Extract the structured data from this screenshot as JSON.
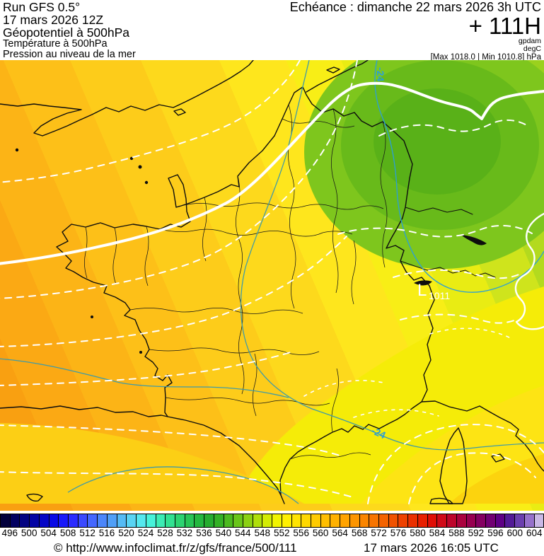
{
  "header": {
    "left_lines": [
      "Run GFS 0.5°",
      "17 mars 2026 12Z",
      "Géopotentiel à 500hPa",
      "Température à 500hPa",
      "Pression au niveau de la mer"
    ],
    "echeance": "Echéance : dimanche 22 mars 2026 3h UTC",
    "forecast_hour": "+ 111H",
    "unit_lines": [
      "gpdam",
      "degC"
    ],
    "maxmin": "[Max 1018.0 | Min 1010.8] hPa"
  },
  "map": {
    "low_label": "L",
    "low_value": "1011",
    "temp_labels": [
      {
        "text": "-24"
      },
      {
        "text": "-24"
      }
    ],
    "temp_contour_color": "#2a9fd8",
    "temp_contour_secondary_color": "#3f9ba8",
    "geopotential_contour_color": "#ffffff",
    "isobar_color": "#ffffff"
  },
  "scale": {
    "values": [
      "496",
      "500",
      "504",
      "508",
      "512",
      "516",
      "520",
      "524",
      "528",
      "532",
      "536",
      "540",
      "544",
      "548",
      "552",
      "556",
      "560",
      "564",
      "568",
      "572",
      "576",
      "580",
      "584",
      "588",
      "592",
      "596",
      "600",
      "604"
    ],
    "cell_colors": [
      "#02003c",
      "#020060",
      "#030382",
      "#0404a4",
      "#0505c6",
      "#0a0ae6",
      "#1818fa",
      "#2b2bff",
      "#3a49ff",
      "#4467ff",
      "#4b86fb",
      "#509ff7",
      "#55bbf5",
      "#59d4f3",
      "#55e8ee",
      "#47f2d9",
      "#3cecb4",
      "#32e191",
      "#2cd371",
      "#27c556",
      "#23b83f",
      "#25ad2f",
      "#33b125",
      "#4cba1f",
      "#6ac61a",
      "#8bd113",
      "#afdf0b",
      "#d3ec04",
      "#f1f400",
      "#fff000",
      "#ffe400",
      "#ffd800",
      "#ffcb00",
      "#ffbe00",
      "#ffb100",
      "#ffa300",
      "#fd9500",
      "#fa8500",
      "#f77400",
      "#f46300",
      "#f15200",
      "#ee4100",
      "#eb3000",
      "#e81f00",
      "#e00e06",
      "#d00a18",
      "#bd052b",
      "#aa023e",
      "#970050",
      "#840061",
      "#710073",
      "#5e0085",
      "#531a96",
      "#6b3fae",
      "#9671cb",
      "#c9b8e6"
    ]
  },
  "footer": {
    "copyright": "© http://www.infoclimat.fr/z/gfs/france/500/111",
    "generated": "17 mars 2026 16:05 UTC"
  }
}
